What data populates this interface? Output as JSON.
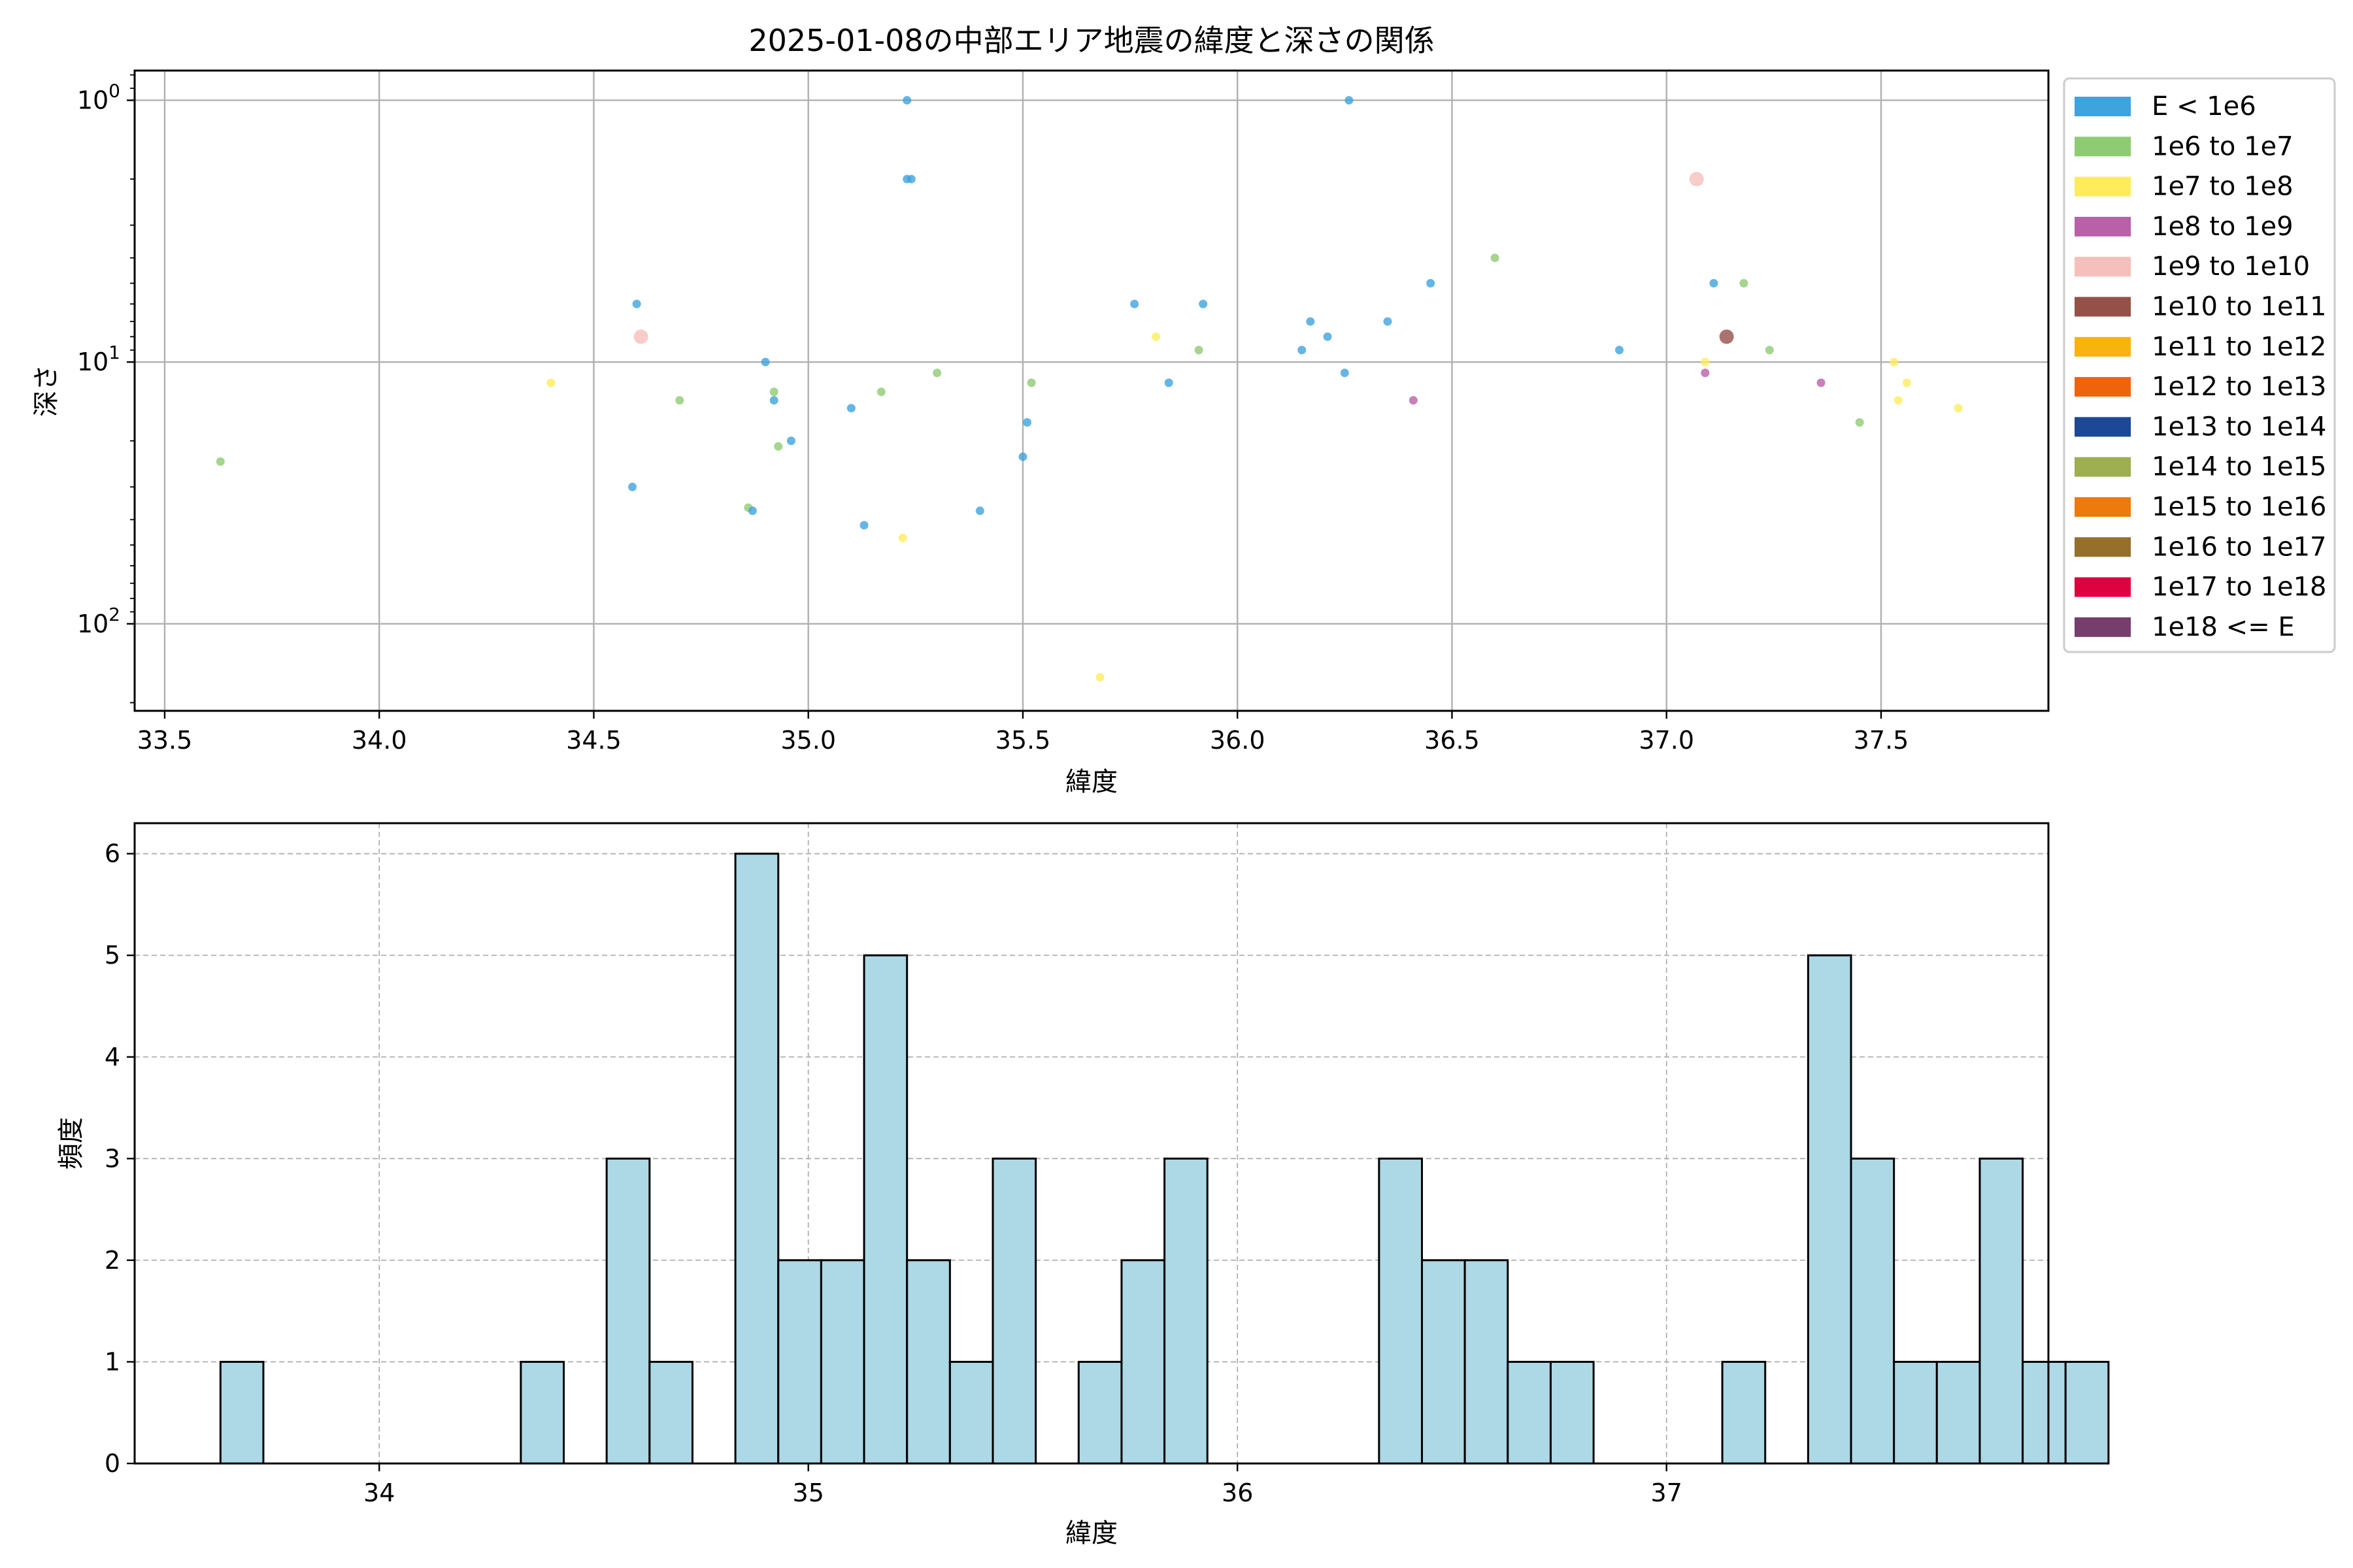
{
  "chart_data": [
    {
      "type": "scatter",
      "title": "2025-01-08の中部エリア地震の緯度と深さの関係",
      "xlabel": "緯度",
      "ylabel": "深さ",
      "xlim": [
        33.43,
        37.89
      ],
      "ylim": [
        215,
        0.77
      ],
      "y_scale": "log",
      "y_inverted": true,
      "xticks": [
        "33.5",
        "34.0",
        "34.5",
        "35.0",
        "35.5",
        "36.0",
        "36.5",
        "37.0",
        "37.5"
      ],
      "yticks": [
        {
          "value": 1,
          "base": "10",
          "exp": "0"
        },
        {
          "value": 10,
          "base": "10",
          "exp": "1"
        },
        {
          "value": 100,
          "base": "10",
          "exp": "2"
        }
      ],
      "grid": true,
      "legend": {
        "placement": "outside-right",
        "entries": [
          {
            "label": "E < 1e6",
            "color": "#3fa3df"
          },
          {
            "label": "1e6 to 1e7",
            "color": "#8fcb73"
          },
          {
            "label": "1e7 to 1e8",
            "color": "#feec5d"
          },
          {
            "label": "1e8 to 1e9",
            "color": "#b960a8"
          },
          {
            "label": "1e9 to 1e10",
            "color": "#f5bfbb"
          },
          {
            "label": "1e10 to 1e11",
            "color": "#955048"
          },
          {
            "label": "1e11 to 1e12",
            "color": "#f9b30e"
          },
          {
            "label": "1e12 to 1e13",
            "color": "#ef630d"
          },
          {
            "label": "1e13 to 1e14",
            "color": "#1c4896"
          },
          {
            "label": "1e14 to 1e15",
            "color": "#9daf50"
          },
          {
            "label": "1e15 to 1e16",
            "color": "#ee7a0b"
          },
          {
            "label": "1e16 to 1e17",
            "color": "#966f2a"
          },
          {
            "label": "1e17 to 1e18",
            "color": "#dc0340"
          },
          {
            "label": "1e18 <= E",
            "color": "#773d6d"
          }
        ]
      },
      "points": [
        {
          "x": 33.63,
          "y": 24,
          "c": 1
        },
        {
          "x": 34.4,
          "y": 12,
          "c": 2
        },
        {
          "x": 34.59,
          "y": 30,
          "c": 0
        },
        {
          "x": 34.6,
          "y": 6,
          "c": 0
        },
        {
          "x": 34.61,
          "y": 8,
          "c": 4,
          "big": true
        },
        {
          "x": 34.7,
          "y": 14,
          "c": 1
        },
        {
          "x": 34.86,
          "y": 36,
          "c": 1
        },
        {
          "x": 34.87,
          "y": 37,
          "c": 0
        },
        {
          "x": 34.9,
          "y": 10,
          "c": 0
        },
        {
          "x": 34.92,
          "y": 13,
          "c": 1
        },
        {
          "x": 34.92,
          "y": 14,
          "c": 0
        },
        {
          "x": 34.93,
          "y": 21,
          "c": 1
        },
        {
          "x": 34.96,
          "y": 20,
          "c": 0
        },
        {
          "x": 35.1,
          "y": 15,
          "c": 0
        },
        {
          "x": 35.13,
          "y": 42,
          "c": 0
        },
        {
          "x": 35.17,
          "y": 13,
          "c": 1
        },
        {
          "x": 35.22,
          "y": 47,
          "c": 2
        },
        {
          "x": 35.23,
          "y": 1,
          "c": 0
        },
        {
          "x": 35.23,
          "y": 2,
          "c": 0
        },
        {
          "x": 35.24,
          "y": 2,
          "c": 0
        },
        {
          "x": 35.3,
          "y": 11,
          "c": 1
        },
        {
          "x": 35.4,
          "y": 37,
          "c": 0
        },
        {
          "x": 35.5,
          "y": 23,
          "c": 0
        },
        {
          "x": 35.51,
          "y": 17,
          "c": 0
        },
        {
          "x": 35.52,
          "y": 12,
          "c": 1
        },
        {
          "x": 35.68,
          "y": 160,
          "c": 2
        },
        {
          "x": 35.76,
          "y": 6,
          "c": 0
        },
        {
          "x": 35.81,
          "y": 8,
          "c": 2
        },
        {
          "x": 35.84,
          "y": 12,
          "c": 0
        },
        {
          "x": 35.91,
          "y": 9,
          "c": 1
        },
        {
          "x": 35.92,
          "y": 6,
          "c": 0
        },
        {
          "x": 36.15,
          "y": 9,
          "c": 0
        },
        {
          "x": 36.17,
          "y": 7,
          "c": 0
        },
        {
          "x": 36.21,
          "y": 8,
          "c": 0
        },
        {
          "x": 36.25,
          "y": 11,
          "c": 0
        },
        {
          "x": 36.26,
          "y": 1,
          "c": 0
        },
        {
          "x": 36.35,
          "y": 7,
          "c": 0
        },
        {
          "x": 36.41,
          "y": 14,
          "c": 3
        },
        {
          "x": 36.45,
          "y": 5,
          "c": 0
        },
        {
          "x": 36.6,
          "y": 4,
          "c": 1
        },
        {
          "x": 36.89,
          "y": 9,
          "c": 0
        },
        {
          "x": 37.07,
          "y": 2,
          "c": 4,
          "big": true
        },
        {
          "x": 37.09,
          "y": 10,
          "c": 2
        },
        {
          "x": 37.09,
          "y": 11,
          "c": 3
        },
        {
          "x": 37.11,
          "y": 5,
          "c": 0
        },
        {
          "x": 37.14,
          "y": 8,
          "c": 5,
          "big": true
        },
        {
          "x": 37.18,
          "y": 5,
          "c": 1
        },
        {
          "x": 37.24,
          "y": 9,
          "c": 1
        },
        {
          "x": 37.36,
          "y": 12,
          "c": 3
        },
        {
          "x": 37.45,
          "y": 17,
          "c": 1
        },
        {
          "x": 37.53,
          "y": 10,
          "c": 2
        },
        {
          "x": 37.54,
          "y": 14,
          "c": 2
        },
        {
          "x": 37.56,
          "y": 12,
          "c": 2
        },
        {
          "x": 37.68,
          "y": 15,
          "c": 2
        }
      ]
    },
    {
      "type": "bar",
      "subtype": "histogram",
      "title": "",
      "xlabel": "緯度",
      "ylabel": "頻度",
      "xlim": [
        33.43,
        37.89
      ],
      "ylim": [
        0,
        6.3
      ],
      "xticks": [
        "34",
        "35",
        "36",
        "37"
      ],
      "yticks": [
        "0",
        "1",
        "2",
        "3",
        "4",
        "5",
        "6"
      ],
      "grid": true,
      "bin_start": 33.63,
      "bin_width": 0.1,
      "bar_color": "#add8e6",
      "counts": [
        1,
        0,
        0,
        0,
        0,
        0,
        0,
        1,
        0,
        3,
        1,
        0,
        6,
        2,
        2,
        5,
        2,
        1,
        3,
        0,
        1,
        2,
        3,
        0,
        0,
        0,
        0,
        3,
        2,
        2,
        1,
        1,
        0,
        0,
        0,
        1,
        0,
        5,
        3,
        1,
        1,
        3,
        1,
        1
      ]
    }
  ]
}
